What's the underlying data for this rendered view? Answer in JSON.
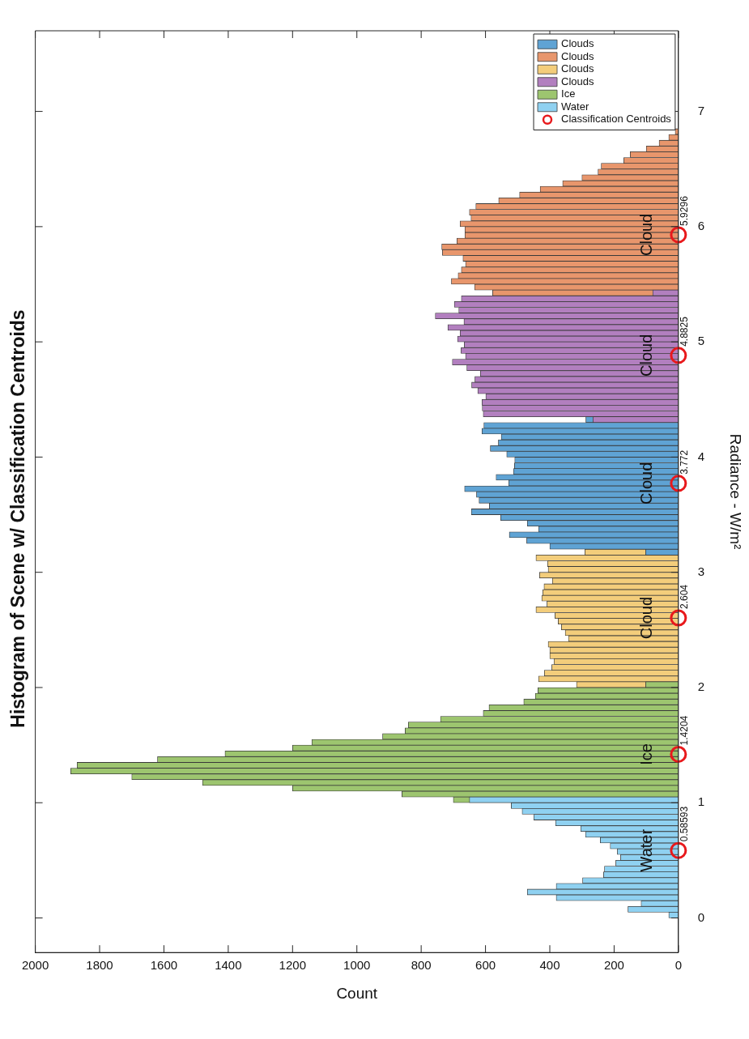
{
  "chart_data": {
    "type": "histogram",
    "orientation": "horizontal",
    "title": "Histogram of Scene w/ Classification Centroids",
    "xlabel": "Count",
    "ylabel": "Radiance - W/m²",
    "xlim": [
      2000,
      0
    ],
    "xticks": [
      0,
      200,
      400,
      600,
      800,
      1000,
      1200,
      1400,
      1600,
      1800,
      2000
    ],
    "ylim": [
      -0.3,
      7.7
    ],
    "yticks": [
      0,
      1,
      2,
      3,
      4,
      5,
      6,
      7
    ],
    "legend": "top right",
    "marker": "circle",
    "series": [
      {
        "name": "Clouds",
        "color": "#5fa3d4",
        "bins": [
          3.15,
          3.2,
          3.25,
          3.3,
          3.35,
          3.4,
          3.45,
          3.5,
          3.55,
          3.6,
          3.65,
          3.7,
          3.75,
          3.8,
          3.85,
          3.9,
          3.95,
          4,
          4.05,
          4.1,
          4.15,
          4.2,
          4.25,
          4.3,
          4.35
        ],
        "values": [
          102,
          400,
          472,
          526,
          435,
          470,
          553,
          644,
          588,
          620,
          628,
          665,
          528,
          567,
          513,
          510,
          509,
          534,
          585,
          560,
          551,
          611,
          605,
          288
        ]
      },
      {
        "name": "Clouds",
        "color": "#e8966c",
        "bins": [
          5.4,
          5.45,
          5.5,
          5.55,
          5.6,
          5.65,
          5.7,
          5.75,
          5.8,
          5.85,
          5.9,
          5.95,
          6,
          6.05,
          6.1,
          6.15,
          6.2,
          6.25,
          6.3,
          6.35,
          6.4,
          6.45,
          6.5,
          6.55,
          6.6,
          6.65,
          6.7,
          6.75,
          6.8,
          6.85
        ],
        "values": [
          578,
          634,
          706,
          685,
          675,
          662,
          670,
          734,
          736,
          689,
          664,
          664,
          679,
          645,
          650,
          630,
          559,
          494,
          430,
          360,
          300,
          250,
          240,
          170,
          150,
          100,
          60,
          30,
          10
        ]
      },
      {
        "name": "Clouds",
        "color": "#f3cd7b",
        "bins": [
          2,
          2.05,
          2.1,
          2.15,
          2.2,
          2.25,
          2.3,
          2.35,
          2.4,
          2.45,
          2.5,
          2.55,
          2.6,
          2.65,
          2.7,
          2.75,
          2.8,
          2.85,
          2.9,
          2.95,
          3,
          3.05,
          3.1,
          3.15,
          3.2
        ],
        "values": [
          317,
          435,
          417,
          394,
          387,
          400,
          400,
          405,
          342,
          352,
          364,
          374,
          384,
          443,
          409,
          425,
          422,
          418,
          392,
          432,
          405,
          407,
          443,
          291
        ]
      },
      {
        "name": "Clouds",
        "color": "#b27fbf",
        "bins": [
          4.3,
          4.35,
          4.4,
          4.45,
          4.5,
          4.55,
          4.6,
          4.65,
          4.7,
          4.75,
          4.8,
          4.85,
          4.9,
          4.95,
          5,
          5.05,
          5.1,
          5.15,
          5.2,
          5.25,
          5.3,
          5.35,
          5.4,
          5.45
        ],
        "values": [
          266,
          607,
          610,
          611,
          599,
          624,
          643,
          633,
          616,
          658,
          703,
          662,
          676,
          666,
          687,
          679,
          717,
          667,
          756,
          683,
          697,
          675,
          80
        ]
      },
      {
        "name": "Ice",
        "color": "#9dc56f",
        "bins": [
          1,
          1.05,
          1.1,
          1.15,
          1.2,
          1.25,
          1.3,
          1.35,
          1.4,
          1.45,
          1.5,
          1.55,
          1.6,
          1.65,
          1.7,
          1.75,
          1.8,
          1.85,
          1.9,
          1.95,
          2,
          2.05
        ],
        "values": [
          700,
          860,
          1200,
          1480,
          1700,
          1890,
          1870,
          1620,
          1410,
          1200,
          1140,
          920,
          850,
          840,
          740,
          607,
          589,
          481,
          445,
          437,
          102
        ]
      },
      {
        "name": "Water",
        "color": "#8fd1f1",
        "bins": [
          0,
          0.05,
          0.1,
          0.15,
          0.2,
          0.25,
          0.3,
          0.35,
          0.4,
          0.45,
          0.5,
          0.55,
          0.6,
          0.65,
          0.7,
          0.75,
          0.8,
          0.85,
          0.9,
          0.95,
          1,
          1.05
        ],
        "values": [
          30,
          157,
          116,
          380,
          470,
          380,
          298,
          233,
          230,
          195,
          180,
          190,
          212,
          243,
          289,
          304,
          382,
          450,
          486,
          520,
          650
        ]
      },
      {
        "type": "scatter",
        "name": "Classification Centroids",
        "color": "#e8191c",
        "x": [
          0.58593,
          1.4204,
          2.604,
          3.772,
          4.8825,
          5.9296
        ],
        "values": [
          0,
          0,
          0,
          0,
          0,
          0
        ]
      }
    ],
    "annotations": [
      "0.58593",
      "1.4204",
      "2.604",
      "3.772",
      "4.8825",
      "5.9296",
      "Water",
      "Ice",
      "Cloud",
      "Cloud",
      "Cloud",
      "Cloud"
    ]
  }
}
